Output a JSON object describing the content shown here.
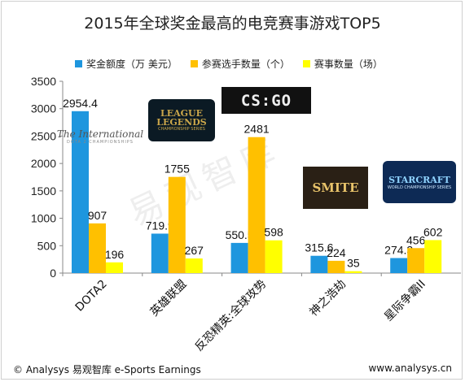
{
  "header": {
    "title": "2015年全球奖金最高的电竞赛事游戏TOP5"
  },
  "legend": [
    {
      "label": "奖金额度（万 美元）",
      "color": "#1E96DE"
    },
    {
      "label": "参赛选手数量（个）",
      "color": "#FFC000"
    },
    {
      "label": "赛事数量（场）",
      "color": "#FFFF00"
    }
  ],
  "watermark": "易观智库",
  "footer": {
    "left": "© Analysys 易观智库 e-Sports Earnings",
    "right": "www.analysys.cn"
  },
  "logos": {
    "dota2": {
      "line1": "The International",
      "line2": "DOTA 2 CHAMPIONSHIPS"
    },
    "lol": {
      "line1": "LEAGUE",
      "line2": "LEGENDS",
      "line3": "CHAMPIONSHIP SERIES"
    },
    "csgo": {
      "text": "CS:GO"
    },
    "smite": {
      "text": "SMITE"
    },
    "sc2": {
      "line1": "STARCRAFT",
      "line2": "WORLD CHAMPIONSHIP SERIES"
    }
  },
  "chart_data": {
    "type": "bar",
    "title": "2015年全球奖金最高的电竞赛事游戏TOP5",
    "categories": [
      "DOTA2",
      "英雄联盟",
      "反恐精英:全球攻势",
      "神之浩劫",
      "星际争霸II"
    ],
    "series": [
      {
        "name": "奖金额度（万 美元）",
        "color": "#1E96DE",
        "values": [
          2954.4,
          719.9,
          550.5,
          315.6,
          274.3
        ],
        "labels": [
          "2954.4",
          "719.9",
          "550.5",
          "315.6",
          "274.3"
        ]
      },
      {
        "name": "参赛选手数量（个）",
        "color": "#FFC000",
        "values": [
          907,
          1755,
          2481,
          224,
          456
        ],
        "labels": [
          "907",
          "1755",
          "2481",
          "224",
          "456"
        ]
      },
      {
        "name": "赛事数量（场）",
        "color": "#FFFF00",
        "values": [
          196,
          267,
          598,
          35,
          602
        ],
        "labels": [
          "196",
          "267",
          "598",
          "35",
          "602"
        ]
      }
    ],
    "ylim": [
      0,
      3500
    ],
    "yticks": [
      0,
      500,
      1000,
      1500,
      2000,
      2500,
      3000,
      3500
    ],
    "grid": false,
    "legend_position": "top"
  }
}
